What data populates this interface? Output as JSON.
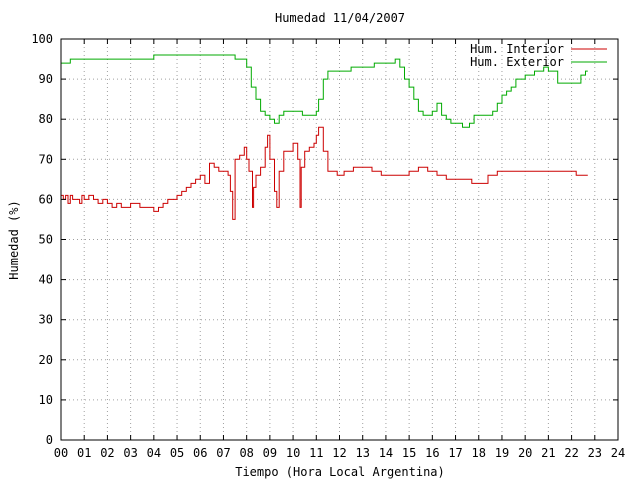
{
  "chart_data": {
    "type": "line",
    "title": "Humedad 11/04/2007",
    "xlabel": "Tiempo (Hora Local Argentina)",
    "ylabel": "Humedad (%)",
    "xlim": [
      0,
      24
    ],
    "ylim": [
      0,
      100
    ],
    "x_ticks": [
      "00",
      "01",
      "02",
      "03",
      "04",
      "05",
      "06",
      "07",
      "08",
      "09",
      "10",
      "11",
      "12",
      "13",
      "14",
      "15",
      "16",
      "17",
      "18",
      "19",
      "20",
      "21",
      "22",
      "23",
      "24"
    ],
    "y_ticks": [
      "0",
      "10",
      "20",
      "30",
      "40",
      "50",
      "60",
      "70",
      "80",
      "90",
      "100"
    ],
    "grid": true,
    "legend_position": "top-right",
    "series": [
      {
        "name": "Hum. Interior",
        "color": "#cc0000",
        "points": [
          [
            0.0,
            61
          ],
          [
            0.1,
            60
          ],
          [
            0.2,
            61
          ],
          [
            0.3,
            59
          ],
          [
            0.4,
            61
          ],
          [
            0.5,
            60
          ],
          [
            0.6,
            60
          ],
          [
            0.8,
            59
          ],
          [
            0.9,
            61
          ],
          [
            1.0,
            60
          ],
          [
            1.2,
            61
          ],
          [
            1.4,
            60
          ],
          [
            1.6,
            59
          ],
          [
            1.8,
            60
          ],
          [
            2.0,
            59
          ],
          [
            2.2,
            58
          ],
          [
            2.4,
            59
          ],
          [
            2.6,
            58
          ],
          [
            2.8,
            58
          ],
          [
            3.0,
            59
          ],
          [
            3.4,
            58
          ],
          [
            3.8,
            58
          ],
          [
            4.0,
            57
          ],
          [
            4.2,
            58
          ],
          [
            4.4,
            59
          ],
          [
            4.6,
            60
          ],
          [
            4.8,
            60
          ],
          [
            5.0,
            61
          ],
          [
            5.2,
            62
          ],
          [
            5.4,
            63
          ],
          [
            5.6,
            64
          ],
          [
            5.8,
            65
          ],
          [
            6.0,
            66
          ],
          [
            6.2,
            64
          ],
          [
            6.4,
            69
          ],
          [
            6.6,
            68
          ],
          [
            6.8,
            67
          ],
          [
            7.0,
            67
          ],
          [
            7.2,
            66
          ],
          [
            7.3,
            62
          ],
          [
            7.4,
            55
          ],
          [
            7.5,
            70
          ],
          [
            7.7,
            71
          ],
          [
            7.9,
            73
          ],
          [
            8.0,
            70
          ],
          [
            8.1,
            67
          ],
          [
            8.25,
            58
          ],
          [
            8.3,
            63
          ],
          [
            8.4,
            66
          ],
          [
            8.6,
            68
          ],
          [
            8.8,
            73
          ],
          [
            8.9,
            76
          ],
          [
            9.0,
            70
          ],
          [
            9.2,
            62
          ],
          [
            9.3,
            58
          ],
          [
            9.4,
            67
          ],
          [
            9.6,
            72
          ],
          [
            9.8,
            72
          ],
          [
            10.0,
            74
          ],
          [
            10.2,
            70
          ],
          [
            10.3,
            58
          ],
          [
            10.35,
            68
          ],
          [
            10.5,
            72
          ],
          [
            10.7,
            73
          ],
          [
            10.9,
            74
          ],
          [
            11.0,
            76
          ],
          [
            11.1,
            78
          ],
          [
            11.3,
            72
          ],
          [
            11.5,
            67
          ],
          [
            11.7,
            67
          ],
          [
            11.9,
            66
          ],
          [
            12.2,
            67
          ],
          [
            12.6,
            68
          ],
          [
            13.0,
            68
          ],
          [
            13.4,
            67
          ],
          [
            13.8,
            66
          ],
          [
            14.2,
            66
          ],
          [
            14.6,
            66
          ],
          [
            15.0,
            67
          ],
          [
            15.4,
            68
          ],
          [
            15.8,
            67
          ],
          [
            16.2,
            66
          ],
          [
            16.6,
            65
          ],
          [
            17.0,
            65
          ],
          [
            17.4,
            65
          ],
          [
            17.7,
            64
          ],
          [
            18.0,
            64
          ],
          [
            18.4,
            66
          ],
          [
            18.8,
            67
          ],
          [
            19.5,
            67
          ],
          [
            20.5,
            67
          ],
          [
            21.5,
            67
          ],
          [
            22.0,
            67
          ],
          [
            22.2,
            66
          ],
          [
            22.7,
            66
          ]
        ]
      },
      {
        "name": "Hum. Exterior",
        "color": "#00aa00",
        "points": [
          [
            0.0,
            94
          ],
          [
            0.4,
            95
          ],
          [
            1.0,
            95
          ],
          [
            2.0,
            95
          ],
          [
            3.0,
            95
          ],
          [
            3.6,
            95
          ],
          [
            4.0,
            96
          ],
          [
            5.0,
            96
          ],
          [
            6.0,
            96
          ],
          [
            7.0,
            96
          ],
          [
            7.5,
            95
          ],
          [
            7.8,
            95
          ],
          [
            8.0,
            93
          ],
          [
            8.2,
            88
          ],
          [
            8.4,
            85
          ],
          [
            8.6,
            82
          ],
          [
            8.8,
            81
          ],
          [
            9.0,
            80
          ],
          [
            9.2,
            79
          ],
          [
            9.4,
            81
          ],
          [
            9.6,
            82
          ],
          [
            10.0,
            82
          ],
          [
            10.4,
            81
          ],
          [
            10.8,
            81
          ],
          [
            11.0,
            82
          ],
          [
            11.1,
            85
          ],
          [
            11.3,
            90
          ],
          [
            11.5,
            92
          ],
          [
            11.7,
            92
          ],
          [
            12.0,
            92
          ],
          [
            12.5,
            93
          ],
          [
            13.0,
            93
          ],
          [
            13.5,
            94
          ],
          [
            14.0,
            94
          ],
          [
            14.4,
            95
          ],
          [
            14.6,
            93
          ],
          [
            14.8,
            90
          ],
          [
            15.0,
            88
          ],
          [
            15.2,
            85
          ],
          [
            15.4,
            82
          ],
          [
            15.6,
            81
          ],
          [
            15.8,
            81
          ],
          [
            16.0,
            82
          ],
          [
            16.2,
            84
          ],
          [
            16.4,
            81
          ],
          [
            16.6,
            80
          ],
          [
            16.8,
            79
          ],
          [
            17.0,
            79
          ],
          [
            17.3,
            78
          ],
          [
            17.6,
            79
          ],
          [
            17.8,
            81
          ],
          [
            18.0,
            81
          ],
          [
            18.4,
            81
          ],
          [
            18.6,
            82
          ],
          [
            18.8,
            84
          ],
          [
            19.0,
            86
          ],
          [
            19.2,
            87
          ],
          [
            19.4,
            88
          ],
          [
            19.6,
            90
          ],
          [
            19.8,
            90
          ],
          [
            20.0,
            91
          ],
          [
            20.4,
            92
          ],
          [
            20.8,
            93
          ],
          [
            21.0,
            92
          ],
          [
            21.4,
            89
          ],
          [
            21.8,
            89
          ],
          [
            22.2,
            89
          ],
          [
            22.4,
            91
          ],
          [
            22.6,
            92
          ],
          [
            22.7,
            92
          ]
        ]
      }
    ]
  }
}
